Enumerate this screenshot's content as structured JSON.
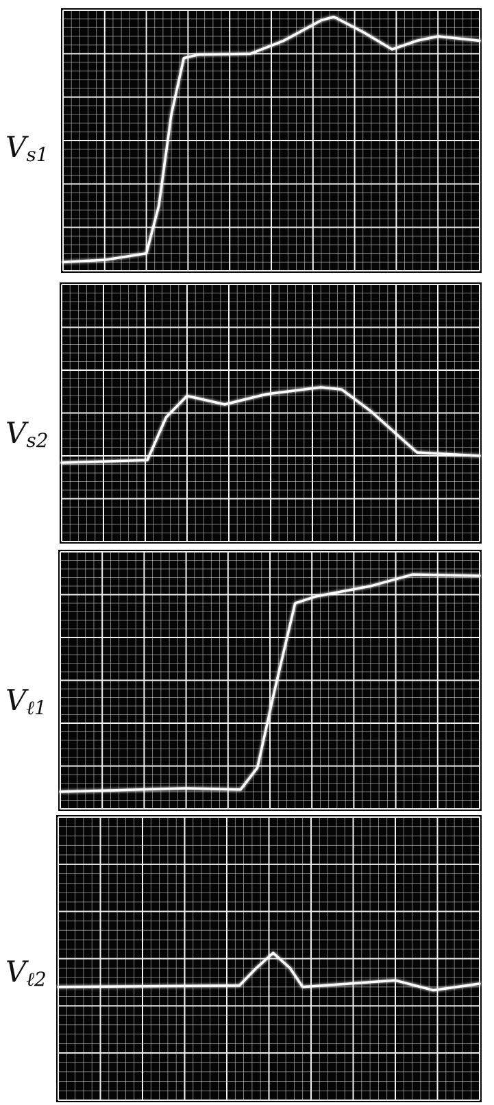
{
  "chart_data": [
    {
      "type": "line",
      "label": "V",
      "subscript": "s1",
      "color": "#ffffff",
      "x": [
        0,
        1,
        2,
        2.3,
        2.6,
        2.9,
        3.26,
        4.5,
        5.3,
        6.2,
        6.5,
        7.2,
        7.9,
        8.5,
        9.0,
        10
      ],
      "values": [
        0.2,
        0.25,
        0.4,
        1.5,
        3.6,
        4.9,
        4.98,
        5.0,
        5.3,
        5.77,
        5.85,
        5.5,
        5.1,
        5.3,
        5.4,
        5.3
      ],
      "xlim": [
        0,
        10
      ],
      "ylim": [
        0,
        6
      ],
      "xticks": [
        0,
        1,
        2,
        3,
        4,
        5,
        6,
        7,
        8,
        9,
        10
      ],
      "yticks": [
        0,
        1,
        2,
        3,
        4,
        5,
        6
      ],
      "grid": true
    },
    {
      "type": "line",
      "label": "V",
      "subscript": "s2",
      "color": "#ffffff",
      "x": [
        0,
        2.05,
        2.5,
        3.0,
        3.9,
        4.9,
        6.2,
        6.7,
        7.4,
        8.5,
        10
      ],
      "values": [
        1.84,
        1.9,
        2.9,
        3.4,
        3.2,
        3.44,
        3.6,
        3.55,
        3.04,
        2.08,
        2.0
      ],
      "xlim": [
        0,
        10
      ],
      "ylim": [
        0,
        6
      ],
      "xticks": [
        0,
        1,
        2,
        3,
        4,
        5,
        6,
        7,
        8,
        9,
        10
      ],
      "yticks": [
        0,
        1,
        2,
        3,
        4,
        5,
        6
      ],
      "grid": true
    },
    {
      "type": "line",
      "label": "V",
      "subscript": "ℓ1",
      "color": "#ffffff",
      "x": [
        0,
        3.0,
        4.3,
        4.7,
        5.1,
        5.6,
        6.1,
        7.4,
        8.4,
        10
      ],
      "values": [
        0.4,
        0.48,
        0.45,
        0.96,
        2.72,
        4.8,
        4.96,
        5.2,
        5.47,
        5.44
      ],
      "xlim": [
        0,
        10
      ],
      "ylim": [
        0,
        6
      ],
      "xticks": [
        0,
        1,
        2,
        3,
        4,
        5,
        6,
        7,
        8,
        9,
        10
      ],
      "yticks": [
        0,
        1,
        2,
        3,
        4,
        5,
        6
      ],
      "grid": true
    },
    {
      "type": "line",
      "label": "V",
      "subscript": "ℓ2",
      "color": "#ffffff",
      "x": [
        0,
        4.3,
        4.7,
        5.1,
        5.5,
        5.8,
        8.0,
        8.9,
        10
      ],
      "values": [
        2.4,
        2.43,
        2.8,
        3.12,
        2.8,
        2.4,
        2.54,
        2.33,
        2.47
      ],
      "xlim": [
        0,
        10
      ],
      "ylim": [
        0,
        6
      ],
      "xticks": [
        0,
        1,
        2,
        3,
        4,
        5,
        6,
        7,
        8,
        9,
        10
      ],
      "yticks": [
        0,
        1,
        2,
        3,
        4,
        5,
        6
      ],
      "grid": true
    }
  ]
}
